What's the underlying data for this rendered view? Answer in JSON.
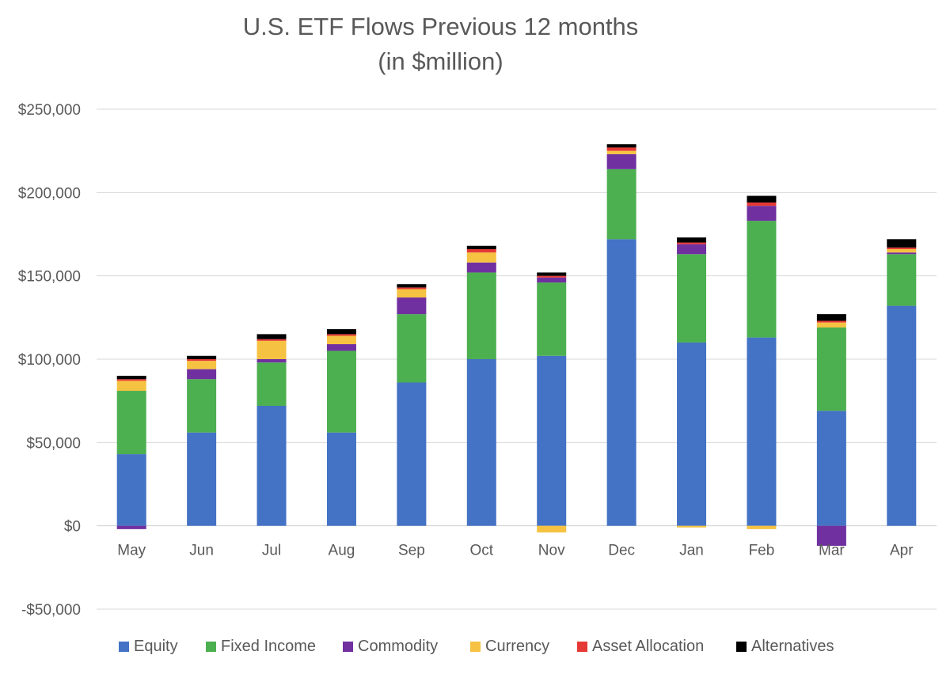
{
  "chart_data": {
    "type": "bar",
    "stacked": true,
    "title": "U.S. ETF Flows Previous 12 months",
    "subtitle": "(in $million)",
    "xlabel": "",
    "ylabel": "",
    "categories": [
      "May",
      "Jun",
      "Jul",
      "Aug",
      "Sep",
      "Oct",
      "Nov",
      "Dec",
      "Jan",
      "Feb",
      "Mar",
      "Apr"
    ],
    "ylim": [
      -50000,
      250000
    ],
    "yticks": [
      -50000,
      0,
      50000,
      100000,
      150000,
      200000,
      250000
    ],
    "ytick_labels": [
      "-$50,000",
      "$0",
      "$50,000",
      "$100,000",
      "$150,000",
      "$200,000",
      "$250,000"
    ],
    "grid": true,
    "legend_position": "bottom",
    "series": [
      {
        "name": "Equity",
        "color": "#4472C4",
        "values": [
          43000,
          56000,
          72000,
          56000,
          86000,
          100000,
          102000,
          172000,
          110000,
          113000,
          69000,
          132000
        ]
      },
      {
        "name": "Fixed Income",
        "color": "#4CAF50",
        "values": [
          38000,
          32000,
          26000,
          49000,
          41000,
          52000,
          44000,
          42000,
          53000,
          70000,
          50000,
          31000
        ]
      },
      {
        "name": "Commodity",
        "color": "#7030A0",
        "values": [
          -2000,
          6000,
          2000,
          4000,
          10000,
          6000,
          3000,
          9000,
          6000,
          9000,
          -12000,
          1000
        ]
      },
      {
        "name": "Currency",
        "color": "#F5C242",
        "values": [
          6000,
          5000,
          11000,
          5000,
          5000,
          6000,
          -4000,
          2000,
          -1000,
          -2000,
          3000,
          2000
        ]
      },
      {
        "name": "Asset Allocation",
        "color": "#E53935",
        "values": [
          1000,
          1000,
          1000,
          1000,
          1000,
          2000,
          1000,
          2000,
          1000,
          2000,
          1000,
          1000
        ]
      },
      {
        "name": "Alternatives",
        "color": "#000000",
        "values": [
          2000,
          2000,
          3000,
          3000,
          2000,
          2000,
          2000,
          2000,
          3000,
          4000,
          4000,
          5000
        ]
      }
    ]
  }
}
